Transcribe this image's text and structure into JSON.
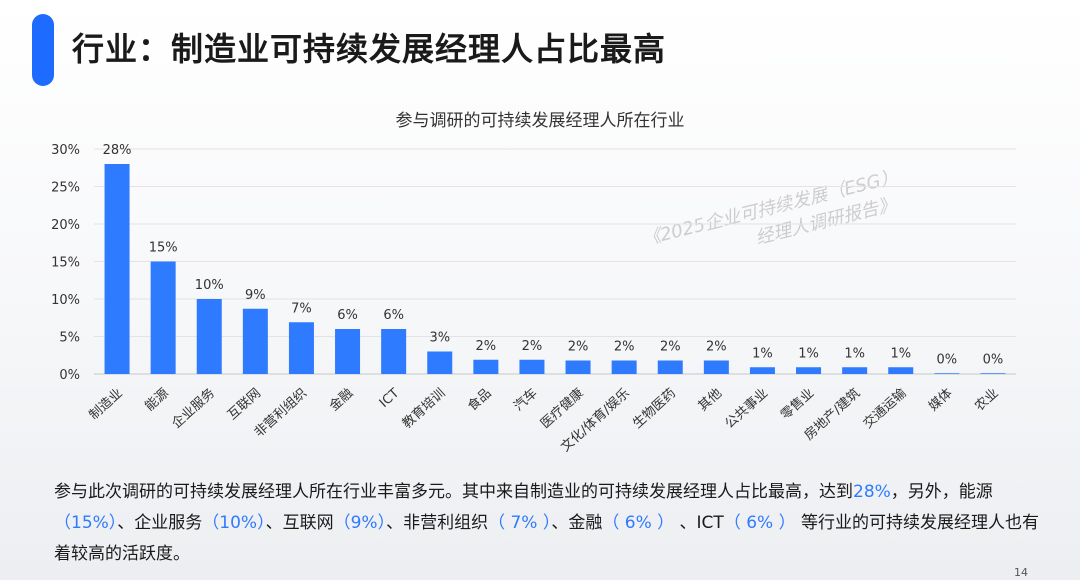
{
  "header": {
    "title": "行业：制造业可持续发展经理人占比最高"
  },
  "watermark": {
    "line1": "《2025企业可持续发展（ESG）",
    "line2": "经理人调研报告》"
  },
  "chart_data": {
    "type": "bar",
    "title": "参与调研的可持续发展经理人所在行业",
    "categories": [
      "制造业",
      "能源",
      "企业服务",
      "互联网",
      "非营利组织",
      "金融",
      "ICT",
      "教育培训",
      "食品",
      "汽车",
      "医疗健康",
      "文化/体育/娱乐",
      "生物医药",
      "其他",
      "公共事业",
      "零售业",
      "房地产/建筑",
      "交通运输",
      "媒体",
      "农业"
    ],
    "values": [
      28,
      15,
      10,
      8.7,
      6.9,
      6.0,
      6.0,
      3.0,
      1.9,
      1.9,
      1.8,
      1.8,
      1.8,
      1.8,
      0.9,
      0.9,
      0.9,
      0.9,
      0.1,
      0.1
    ],
    "value_labels": [
      "28%",
      "15%",
      "10%",
      "9%",
      "7%",
      "6%",
      "6%",
      "3%",
      "2%",
      "2%",
      "2%",
      "2%",
      "2%",
      "2%",
      "1%",
      "1%",
      "1%",
      "1%",
      "0%",
      "0%"
    ],
    "yticks": [
      "0%",
      "5%",
      "10%",
      "15%",
      "20%",
      "25%",
      "30%"
    ],
    "ylim": [
      0,
      30
    ],
    "grid": true,
    "bar_color": "#2f7bff"
  },
  "description": {
    "p1": "参与此次调研的可持续发展经理人所在行业丰富多元。其中来自制造业的可持续发展经理人占比最高，达到",
    "h1": "28%",
    "p2": "，另外，能源",
    "h2": "（15%）",
    "p3": "、企业服务",
    "h3": "（10%）",
    "p4": "、互联网",
    "h4": "（9%）",
    "p5": "、非营利组织",
    "h5": "（ 7% ）",
    "p6": "、金融",
    "h6": "（ 6% ）",
    "p7": " 、ICT",
    "h7": "（ 6% ）",
    "p8": " 等行业的可持续发展经理人也有着较高的活跃度。"
  },
  "footer": {
    "page": "14"
  }
}
